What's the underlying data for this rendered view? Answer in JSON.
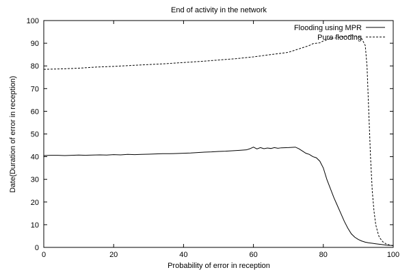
{
  "chart_data": {
    "type": "line",
    "title": "End of activity in the network",
    "xlabel": "Probability of error in reception",
    "ylabel": "Date(Duration of error in reception)",
    "xlim": [
      0,
      100
    ],
    "ylim": [
      0,
      100
    ],
    "xticks": [
      "0",
      "20",
      "40",
      "60",
      "80",
      "100"
    ],
    "yticks": [
      "0",
      "10",
      "20",
      "30",
      "40",
      "50",
      "60",
      "70",
      "80",
      "90",
      "100"
    ],
    "grid": false,
    "legend_position": "top-right",
    "colors": {
      "line": "#000000",
      "background": "#ffffff"
    },
    "series": [
      {
        "name": "Flooding using MPR",
        "style": "solid",
        "x": [
          0,
          2,
          4,
          6,
          8,
          10,
          12,
          14,
          16,
          18,
          20,
          22,
          24,
          26,
          28,
          30,
          32,
          34,
          36,
          38,
          40,
          42,
          44,
          46,
          48,
          50,
          52,
          54,
          56,
          58,
          59,
          60,
          61,
          62,
          63,
          64,
          65,
          66,
          67,
          68,
          70,
          72,
          73,
          74,
          75,
          76,
          77,
          78,
          79,
          80,
          81,
          82,
          83,
          84,
          85,
          86,
          87,
          88,
          89,
          90,
          91,
          92,
          93,
          94,
          95,
          96,
          97,
          98,
          99,
          100
        ],
        "y": [
          40.5,
          40.6,
          40.6,
          40.5,
          40.6,
          40.7,
          40.6,
          40.7,
          40.8,
          40.7,
          40.9,
          40.8,
          41.0,
          40.9,
          41.0,
          41.1,
          41.2,
          41.3,
          41.3,
          41.4,
          41.5,
          41.6,
          41.8,
          42.0,
          42.1,
          42.3,
          42.4,
          42.6,
          42.8,
          43.0,
          43.5,
          44.2,
          43.4,
          44.0,
          43.5,
          43.8,
          43.6,
          44.0,
          43.7,
          43.9,
          44.0,
          44.2,
          43.5,
          42.5,
          41.5,
          41.0,
          40.0,
          39.5,
          38.0,
          35.0,
          30.0,
          26.0,
          22.0,
          18.5,
          15.0,
          11.5,
          8.5,
          6.0,
          4.5,
          3.5,
          2.8,
          2.3,
          2.0,
          1.8,
          1.6,
          1.4,
          1.2,
          1.0,
          0.9,
          0.8
        ]
      },
      {
        "name": "Pure flooding",
        "style": "dashed",
        "x": [
          0,
          5,
          10,
          15,
          20,
          25,
          30,
          35,
          40,
          45,
          50,
          55,
          60,
          65,
          70,
          72,
          74,
          76,
          77,
          78,
          79,
          80,
          82,
          84,
          86,
          88,
          90,
          91,
          92,
          92.5,
          93,
          93.5,
          94,
          94.5,
          95,
          95.5,
          96,
          97,
          98,
          99,
          100
        ],
        "y": [
          78.5,
          78.7,
          79.0,
          79.5,
          79.8,
          80.2,
          80.6,
          81.0,
          81.5,
          82.0,
          82.6,
          83.2,
          84.0,
          85.0,
          86.0,
          87.0,
          88.0,
          89.0,
          89.8,
          90.0,
          90.2,
          91.0,
          92.0,
          92.5,
          93.0,
          93.5,
          93.0,
          92.0,
          89.0,
          80.0,
          60.0,
          40.0,
          25.0,
          16.0,
          10.0,
          7.0,
          4.5,
          2.5,
          1.5,
          1.0,
          0.8
        ]
      }
    ]
  }
}
